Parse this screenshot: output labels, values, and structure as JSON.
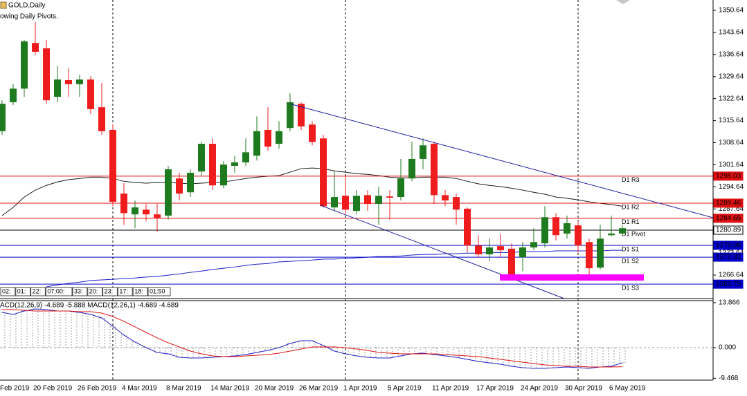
{
  "header": {
    "symbol": "GOLD,Daily",
    "indicator": "owing Daily Pivots."
  },
  "timer_cells": [
    "02:",
    "01:",
    "22:",
    "07:00:",
    "33:",
    "20:",
    "23:",
    "17:",
    "18:",
    "01:50"
  ],
  "chart_data": [
    {
      "type": "candlestick",
      "categories": [
        "Feb 2019",
        null,
        null,
        "20 Feb 2019",
        null,
        null,
        null,
        "26 Feb 2019",
        null,
        null,
        null,
        "4 Mar 2019",
        null,
        null,
        null,
        "8 Mar 2019",
        null,
        null,
        null,
        "14 Mar 2019",
        null,
        null,
        null,
        "20 Mar 2019",
        null,
        null,
        null,
        "26 Mar 2019",
        null,
        null,
        null,
        "1 Apr 2019",
        null,
        null,
        null,
        "5 Apr 2019",
        null,
        null,
        null,
        "11 Apr 2019",
        null,
        null,
        null,
        "17 Apr 2019",
        null,
        null,
        null,
        "24 Apr 2019",
        null,
        null,
        null,
        "30 Apr 2019",
        null,
        null,
        null,
        "6 May 2019",
        null
      ],
      "open": [
        1312.3,
        1321.5,
        1325.8,
        1340.3,
        1338.6,
        1323.2,
        1328.5,
        1327.2,
        1328.7,
        1319.9,
        1312.7,
        1292.5,
        1285.9,
        1287.4,
        1285.9,
        1285.5,
        1297.3,
        1292.9,
        1299.5,
        1308.3,
        1295.1,
        1301.3,
        1302.4,
        1304.5,
        1312.7,
        1308.3,
        1313.3,
        1321.0,
        1314.4,
        1310.0,
        1288.1,
        1291.8,
        1287.0,
        1292.0,
        1289.2,
        1291.6,
        1291.4,
        1297.3,
        1303.5,
        1308.3,
        1292.0,
        1291.4,
        1287.7,
        1276.0,
        1273.2,
        1275.8,
        1275.0,
        1272.3,
        1275.4,
        1276.7,
        1285.0,
        1279.8,
        1282.4,
        1277.1,
        1269.0,
        1279.3,
        1279.8
      ],
      "high": [
        1322.1,
        1327.2,
        1341.2,
        1346.9,
        1341.2,
        1333.1,
        1332.4,
        1330.2,
        1329.8,
        1327.6,
        1314.4,
        1295.8,
        1290.3,
        1289.2,
        1289.2,
        1301.3,
        1299.1,
        1300.2,
        1308.9,
        1310.0,
        1302.8,
        1304.5,
        1310.0,
        1317.0,
        1319.9,
        1315.5,
        1324.3,
        1321.5,
        1315.5,
        1311.1,
        1299.5,
        1298.0,
        1293.6,
        1293.6,
        1294.7,
        1293.6,
        1303.5,
        1308.9,
        1310.0,
        1308.9,
        1293.6,
        1292.5,
        1288.1,
        1279.3,
        1278.2,
        1279.8,
        1276.7,
        1277.1,
        1281.5,
        1288.5,
        1286.3,
        1285.5,
        1283.7,
        1278.2,
        1282.6,
        1285.5,
        1282.6
      ],
      "low": [
        1311.1,
        1320.6,
        1323.2,
        1336.4,
        1321.0,
        1321.5,
        1323.2,
        1323.2,
        1317.7,
        1311.1,
        1288.5,
        1282.6,
        1281.5,
        1283.7,
        1280.4,
        1284.2,
        1290.3,
        1291.4,
        1298.0,
        1293.6,
        1294.2,
        1299.1,
        1301.3,
        1303.0,
        1306.1,
        1306.7,
        1312.3,
        1312.7,
        1307.8,
        1288.1,
        1287.0,
        1286.3,
        1285.9,
        1287.0,
        1282.6,
        1284.2,
        1290.3,
        1296.4,
        1300.2,
        1289.2,
        1288.5,
        1282.6,
        1273.8,
        1272.3,
        1271.0,
        1272.3,
        1266.2,
        1267.9,
        1274.5,
        1275.4,
        1277.6,
        1278.2,
        1273.8,
        1266.6,
        1268.4,
        1278.9,
        1279.3
      ],
      "close": [
        1321.0,
        1325.8,
        1340.8,
        1337.5,
        1322.1,
        1328.7,
        1327.2,
        1328.7,
        1319.3,
        1312.3,
        1289.9,
        1286.3,
        1288.1,
        1285.9,
        1284.8,
        1300.2,
        1292.5,
        1299.1,
        1308.3,
        1295.1,
        1301.7,
        1302.4,
        1305.6,
        1312.3,
        1307.4,
        1312.3,
        1321.5,
        1313.8,
        1308.9,
        1288.5,
        1291.4,
        1287.4,
        1291.8,
        1289.2,
        1291.8,
        1291.2,
        1297.3,
        1303.5,
        1307.8,
        1292.0,
        1290.3,
        1287.4,
        1276.0,
        1273.2,
        1275.4,
        1274.5,
        1266.6,
        1275.4,
        1277.1,
        1285.0,
        1279.3,
        1283.1,
        1276.0,
        1268.8,
        1278.2,
        1279.8,
        1281.5
      ],
      "up_color": "#1e7a1e",
      "down_color": "#ee1c1c",
      "lines": [
        {
          "color": "#1a1a1a",
          "values": [
            1285.5,
            1288.1,
            1291.4,
            1293.6,
            1295.1,
            1296.2,
            1296.9,
            1297.3,
            1297.7,
            1297.7,
            1297.3,
            1296.4,
            1296.0,
            1295.8,
            1296.0,
            1296.0,
            1295.8,
            1295.6,
            1295.8,
            1296.0,
            1296.2,
            1296.7,
            1297.3,
            1297.7,
            1298.0,
            1298.2,
            1299.3,
            1300.4,
            1300.6,
            1300.4,
            1299.7,
            1299.3,
            1298.8,
            1298.6,
            1298.2,
            1297.7,
            1297.5,
            1297.5,
            1297.7,
            1297.7,
            1297.7,
            1297.3,
            1296.4,
            1295.6,
            1295.1,
            1294.7,
            1294.2,
            1293.6,
            1292.9,
            1292.3,
            1291.4,
            1291.0,
            1290.5,
            1289.9,
            1289.4,
            1289.0,
            1288.5
          ]
        },
        {
          "color": "#1c1cc8",
          "values": [
            null,
            null,
            null,
            null,
            1262.9,
            1263.5,
            1264.0,
            1264.4,
            1264.9,
            1265.1,
            1265.3,
            1265.5,
            1265.7,
            1266.0,
            1266.2,
            1266.6,
            1267.0,
            1267.5,
            1267.9,
            1268.4,
            1268.8,
            1269.2,
            1269.7,
            1270.1,
            1270.3,
            1270.8,
            1271.0,
            1271.2,
            1271.4,
            1271.7,
            1271.7,
            1271.9,
            1272.1,
            1272.3,
            1272.5,
            1272.5,
            1272.7,
            1273.0,
            1273.2,
            1273.2,
            1273.4,
            1273.4,
            1273.6,
            1273.6,
            1273.8,
            1273.8,
            1273.8,
            1274.1,
            1274.1,
            1274.1,
            1274.3,
            1274.3,
            1274.3,
            1274.3,
            1274.3,
            1274.5,
            1274.5
          ]
        }
      ],
      "levels": [
        {
          "label": "D1 R3",
          "value": 1298.03,
          "color": "#e01010"
        },
        {
          "label": "D1 R2",
          "value": 1289.46,
          "color": "#e01010"
        },
        {
          "label": "D1 R1",
          "value": 1284.65,
          "color": "#e01010"
        },
        {
          "label": "D1 Pivot",
          "value": 1280.89,
          "color": "#000000"
        },
        {
          "label": "D1 S1",
          "value": 1276.08,
          "color": "#0000c8"
        },
        {
          "label": "D1 S2",
          "value": 1272.32,
          "color": "#0000c8"
        },
        {
          "label": "D1 S3",
          "value": 1263.75,
          "color": "#0000c8"
        }
      ],
      "separators": [
        10,
        31,
        52
      ],
      "ylim": [
        1259.18,
        1353.93
      ],
      "yticks": [
        1350.64,
        1343.64,
        1336.64,
        1329.64,
        1322.64,
        1315.64,
        1308.64,
        1301.64,
        1294.64,
        1287.64,
        1280.64,
        1273.64,
        1266.64
      ]
    },
    {
      "type": "macd",
      "title": "ACD(12,26,9) -4.689 -5.888 MACD(12,26,1) -4.689 -4.689",
      "values": [
        10.88,
        10.24,
        11.3,
        11.94,
        11.73,
        11.3,
        11.3,
        10.88,
        10.24,
        9.17,
        6.61,
        3.84,
        1.71,
        0,
        -1.49,
        -1.92,
        -2.99,
        -3.2,
        -3.2,
        -2.99,
        -2.77,
        -2.56,
        -2.13,
        -1.49,
        -0.85,
        0,
        1.28,
        2.13,
        2.13,
        0.64,
        -1.07,
        -1.92,
        -2.56,
        -2.99,
        -3.2,
        -3.2,
        -2.56,
        -1.92,
        -1.71,
        -2.13,
        -2.56,
        -2.99,
        -3.63,
        -4.27,
        -4.69,
        -5.12,
        -5.76,
        -6.19,
        -6.4,
        -6.4,
        -6.19,
        -5.97,
        -6.19,
        -6.4,
        -5.97,
        -5.76,
        -4.689
      ],
      "hist_color": "#a0a0a0",
      "line_color": "#2020c8",
      "signal": {
        "color": "#e01010",
        "values": [
          11.73,
          11.73,
          11.52,
          11.3,
          11.3,
          11.3,
          11.3,
          11.09,
          11.09,
          10.67,
          9.6,
          8.11,
          6.4,
          4.69,
          2.99,
          1.49,
          0.21,
          -1.07,
          -1.92,
          -2.56,
          -2.77,
          -2.77,
          -2.56,
          -2.35,
          -2.13,
          -1.71,
          -1.07,
          -0.43,
          0.21,
          0.21,
          0.21,
          0,
          -0.43,
          -0.85,
          -1.49,
          -1.71,
          -1.92,
          -1.92,
          -1.92,
          -1.92,
          -2.13,
          -2.35,
          -2.56,
          -2.77,
          -3.2,
          -3.63,
          -4.05,
          -4.48,
          -4.91,
          -5.33,
          -5.55,
          -5.76,
          -5.76,
          -5.97,
          -5.97,
          -5.97,
          -5.888
        ]
      },
      "ylim": [
        -10.03,
        14.5
      ],
      "yticks": [
        13.866,
        {
          "value": 0,
          "label": "0.000"
        },
        -9.468
      ]
    }
  ]
}
